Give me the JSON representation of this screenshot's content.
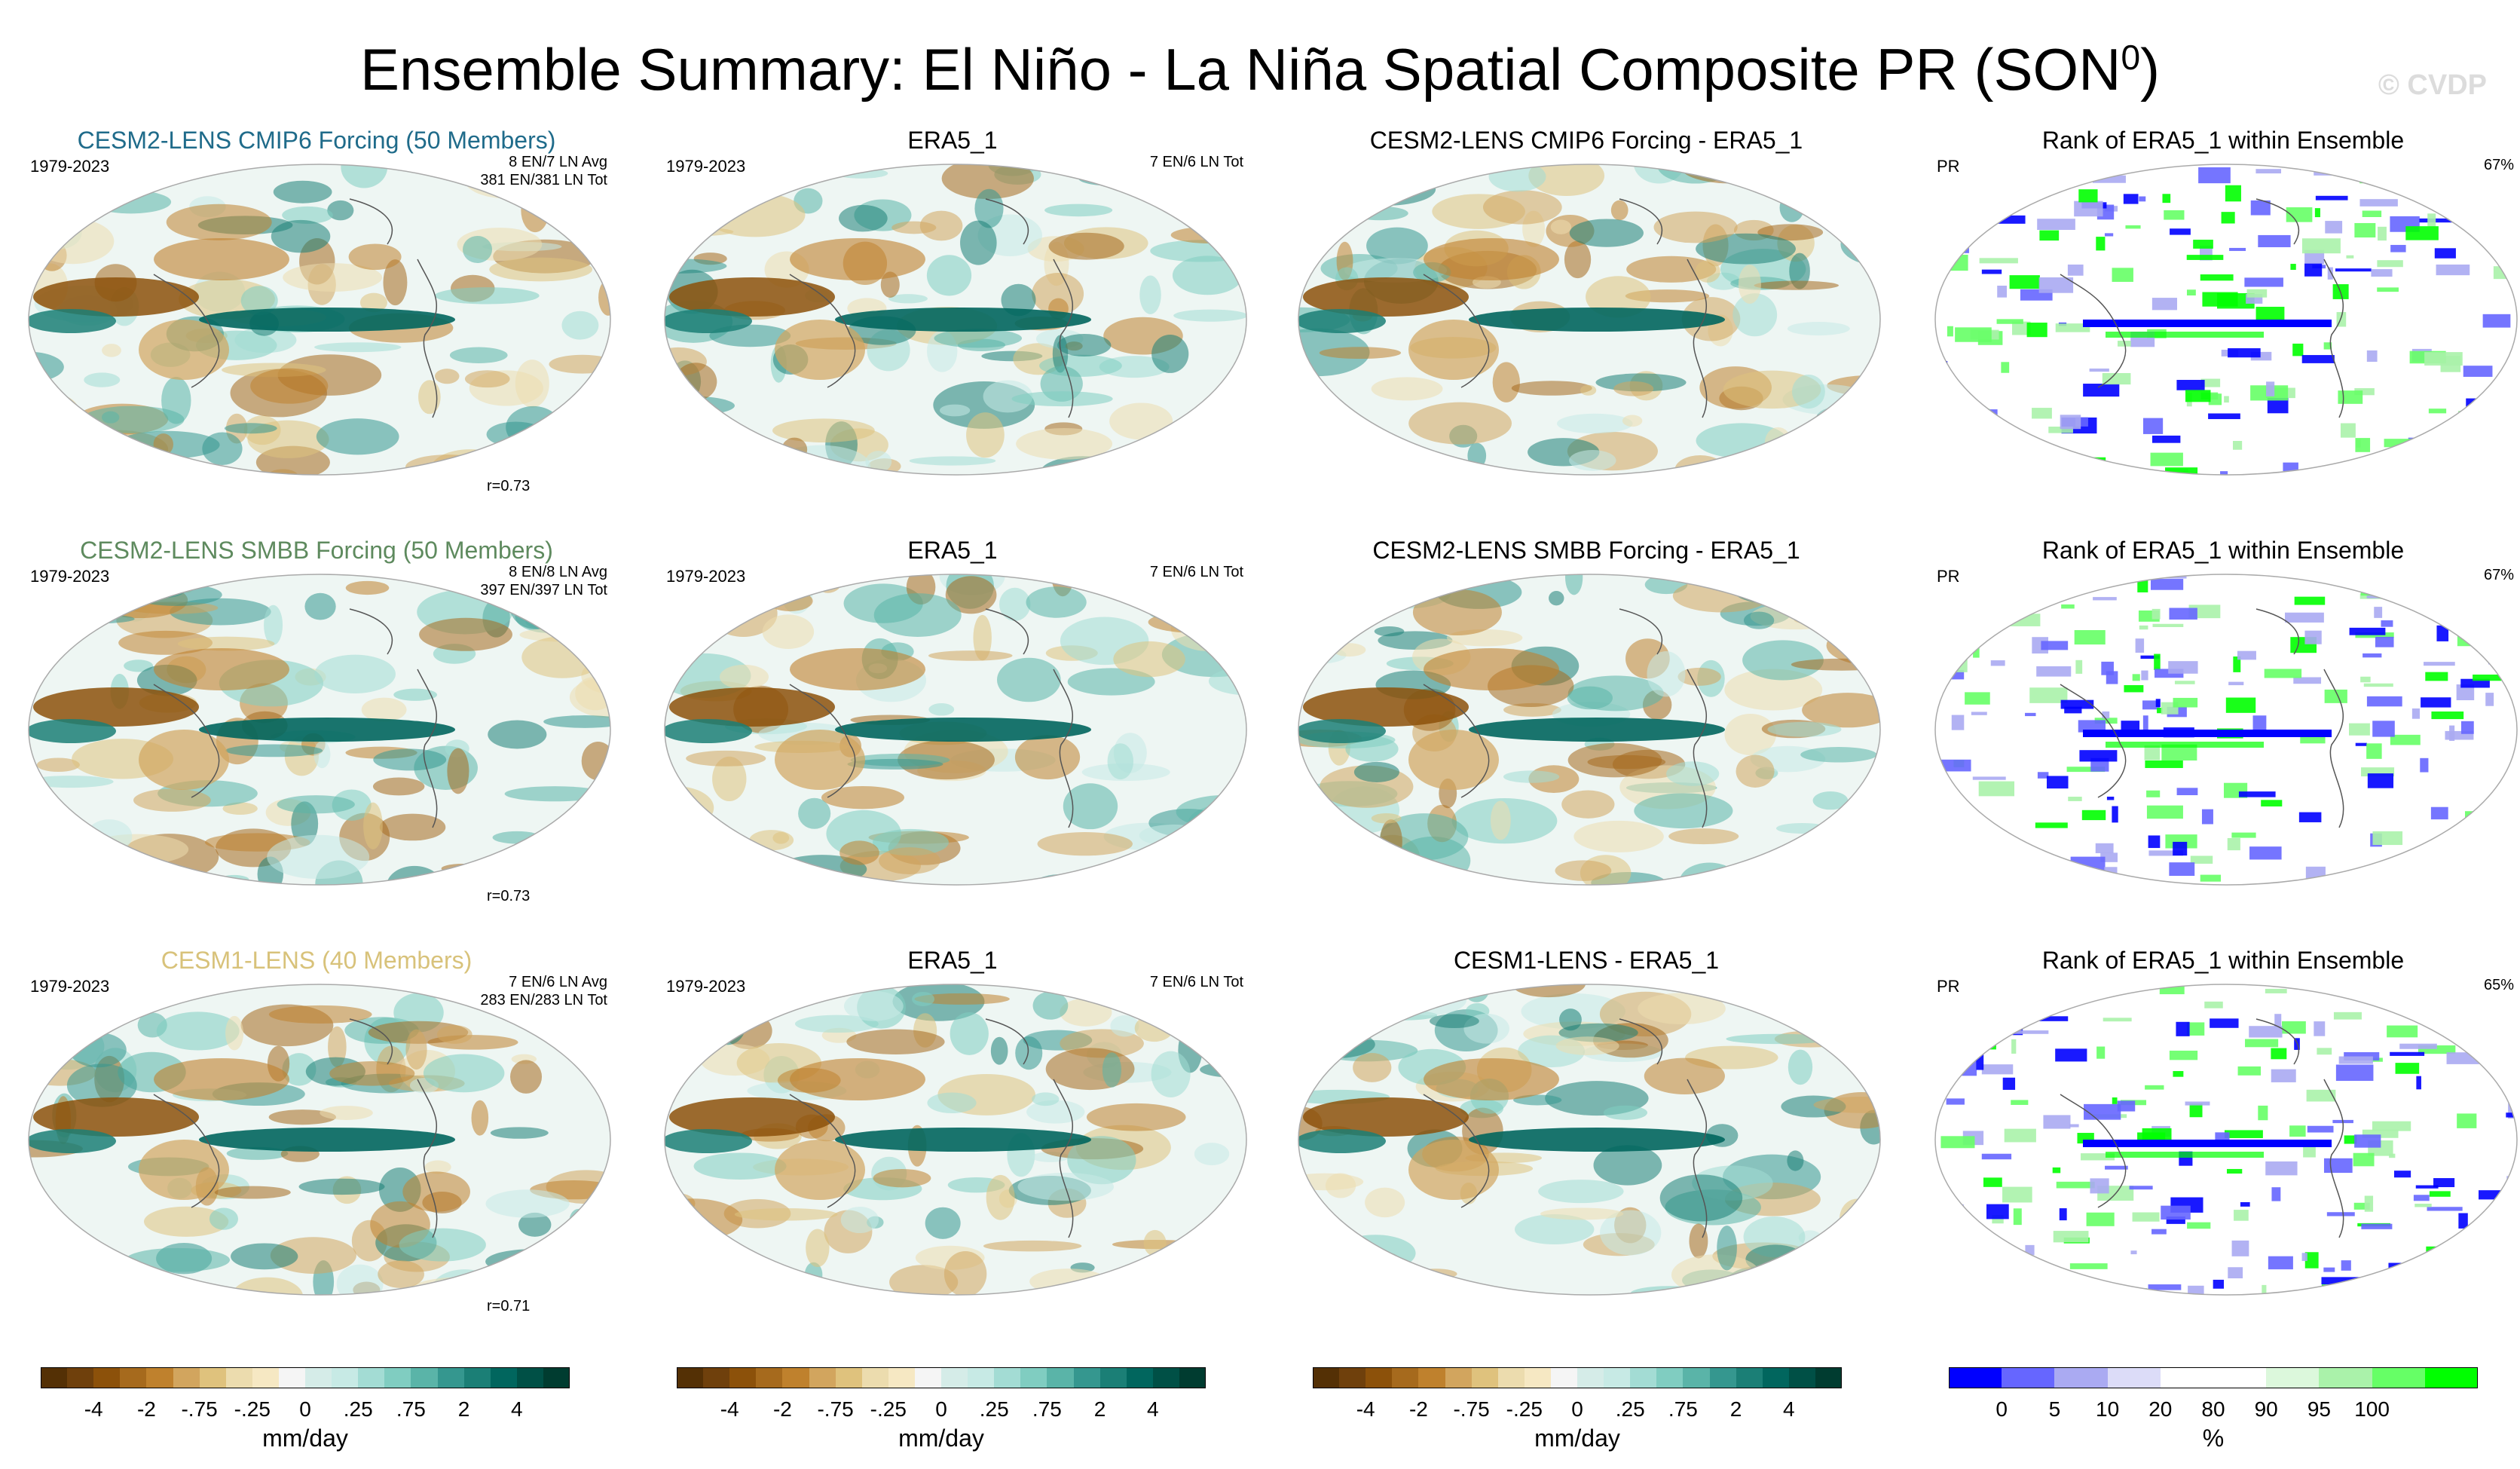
{
  "title": "Ensemble Summary: El Niño - La Niña Spatial Composite PR (SON",
  "title_sup": "0",
  "title_close": ")",
  "watermark": "© CVDP",
  "rows": [
    {
      "ensemble": {
        "title": "CESM2-LENS CMIP6 Forcing (50 Members)",
        "color": "#1f6b8a",
        "period": "1979-2023",
        "stat1": "8 EN/7 LN Avg",
        "stat2": "381 EN/381 LN Tot",
        "corr": "r=0.73"
      },
      "obs": {
        "title": "ERA5_1",
        "period": "1979-2023",
        "stat": "7 EN/6 LN Tot"
      },
      "diff": {
        "title": "CESM2-LENS CMIP6 Forcing - ERA5_1"
      },
      "rank": {
        "title": "Rank of ERA5_1 within Ensemble",
        "var": "PR",
        "pct": "67%"
      }
    },
    {
      "ensemble": {
        "title": "CESM2-LENS SMBB Forcing (50 Members)",
        "color": "#5e8a5e",
        "period": "1979-2023",
        "stat1": "8 EN/8 LN Avg",
        "stat2": "397 EN/397 LN Tot",
        "corr": "r=0.73"
      },
      "obs": {
        "title": "ERA5_1",
        "period": "1979-2023",
        "stat": "7 EN/6 LN Tot"
      },
      "diff": {
        "title": "CESM2-LENS SMBB Forcing - ERA5_1"
      },
      "rank": {
        "title": "Rank of ERA5_1 within Ensemble",
        "var": "PR",
        "pct": "67%"
      }
    },
    {
      "ensemble": {
        "title": "CESM1-LENS (40 Members)",
        "color": "#d8c27a",
        "period": "1979-2023",
        "stat1": "7 EN/6 LN Avg",
        "stat2": "283 EN/283 LN Tot",
        "corr": "r=0.71"
      },
      "obs": {
        "title": "ERA5_1",
        "period": "1979-2023",
        "stat": "7 EN/6 LN Tot"
      },
      "diff": {
        "title": "CESM1-LENS - ERA5_1"
      },
      "rank": {
        "title": "Rank of ERA5_1 within Ensemble",
        "var": "PR",
        "pct": "65%"
      }
    }
  ],
  "colorbar_pr": {
    "unit": "mm/day",
    "ticks": [
      "-4",
      "-2",
      "-.75",
      "-.25",
      "0",
      ".25",
      ".75",
      "2",
      "4"
    ],
    "colors": [
      "#543005",
      "#6f400c",
      "#8c510a",
      "#a66a1d",
      "#bf812d",
      "#d2a55e",
      "#dfc27d",
      "#ecdcae",
      "#f6e8c3",
      "#f5f5f5",
      "#d5ece8",
      "#c7eae5",
      "#a3dcd4",
      "#80cdc1",
      "#5ab4a8",
      "#35978f",
      "#1b7f76",
      "#01665e",
      "#005046",
      "#003c30"
    ]
  },
  "colorbar_rank": {
    "unit": "%",
    "ticks": [
      "0",
      "5",
      "10",
      "20",
      "80",
      "90",
      "95",
      "100"
    ],
    "colors": [
      "#0000ff",
      "#6666ff",
      "#aaaaf2",
      "#dcdcf8",
      "#ffffff",
      "#ffffff",
      "#dcf8dc",
      "#aaf2aa",
      "#66ff66",
      "#00ff00"
    ]
  },
  "chart_data": {
    "type": "heatmap",
    "description_fields": [
      "El Niño - La Niña composite precipitation, SON season"
    ],
    "panels": 12,
    "units_composite": "mm/day",
    "units_rank": "%",
    "pattern_correlations": [
      0.73,
      0.73,
      0.71
    ],
    "rank_percent_in_range": [
      67,
      67,
      65
    ]
  }
}
